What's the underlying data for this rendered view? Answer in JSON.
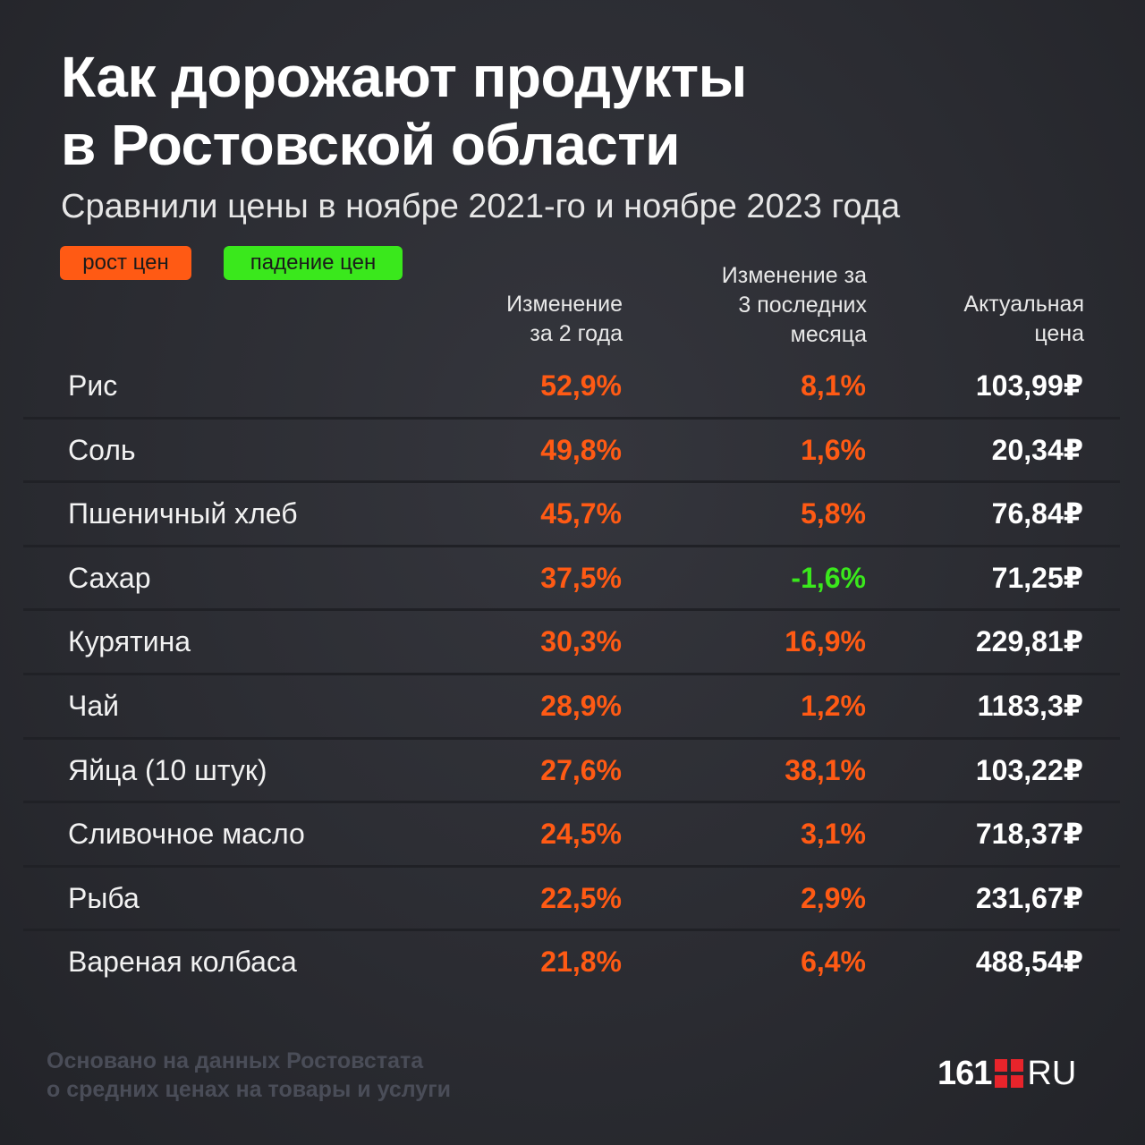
{
  "header": {
    "title_line1": "Как дорожают продукты",
    "title_line2": "в Ростовской области",
    "subtitle": "Сравнили цены в ноябре 2021-го и ноябре 2023 года"
  },
  "legend": {
    "up_label": "рост цен",
    "down_label": "падение цен",
    "up_color": "#ff5a14",
    "down_color": "#3ae81c"
  },
  "chart_data": {
    "type": "table",
    "columns": [
      "",
      "Изменение\nза 2 года",
      "Изменение за\n3 последних\nмесяца",
      "Актуальная\nцена"
    ],
    "rows": [
      {
        "name": "Рис",
        "change_2y": "52,9%",
        "change_3m": "8,1%",
        "price": "103,99₽"
      },
      {
        "name": "Соль",
        "change_2y": "49,8%",
        "change_3m": "1,6%",
        "price": "20,34₽"
      },
      {
        "name": "Пшеничный хлеб",
        "change_2y": "45,7%",
        "change_3m": "5,8%",
        "price": "76,84₽"
      },
      {
        "name": "Сахар",
        "change_2y": "37,5%",
        "change_3m": "-1,6%",
        "price": "71,25₽"
      },
      {
        "name": "Курятина",
        "change_2y": "30,3%",
        "change_3m": "16,9%",
        "price": "229,81₽"
      },
      {
        "name": "Чай",
        "change_2y": "28,9%",
        "change_3m": "1,2%",
        "price": "1183,3₽"
      },
      {
        "name": "Яйца (10 штук)",
        "change_2y": "27,6%",
        "change_3m": "38,1%",
        "price": "103,22₽"
      },
      {
        "name": "Сливочное масло",
        "change_2y": "24,5%",
        "change_3m": "3,1%",
        "price": "718,37₽"
      },
      {
        "name": "Рыба",
        "change_2y": "22,5%",
        "change_3m": "2,9%",
        "price": "231,67₽"
      },
      {
        "name": "Вареная колбаса",
        "change_2y": "21,8%",
        "change_3m": "6,4%",
        "price": "488,54₽"
      }
    ]
  },
  "footer": {
    "source_line1": "Основано на данных Ростовстата",
    "source_line2": "о средних ценах на товары и услуги"
  },
  "logo": {
    "number": "161",
    "suffix": "RU",
    "mark_color": "#e8242b"
  }
}
